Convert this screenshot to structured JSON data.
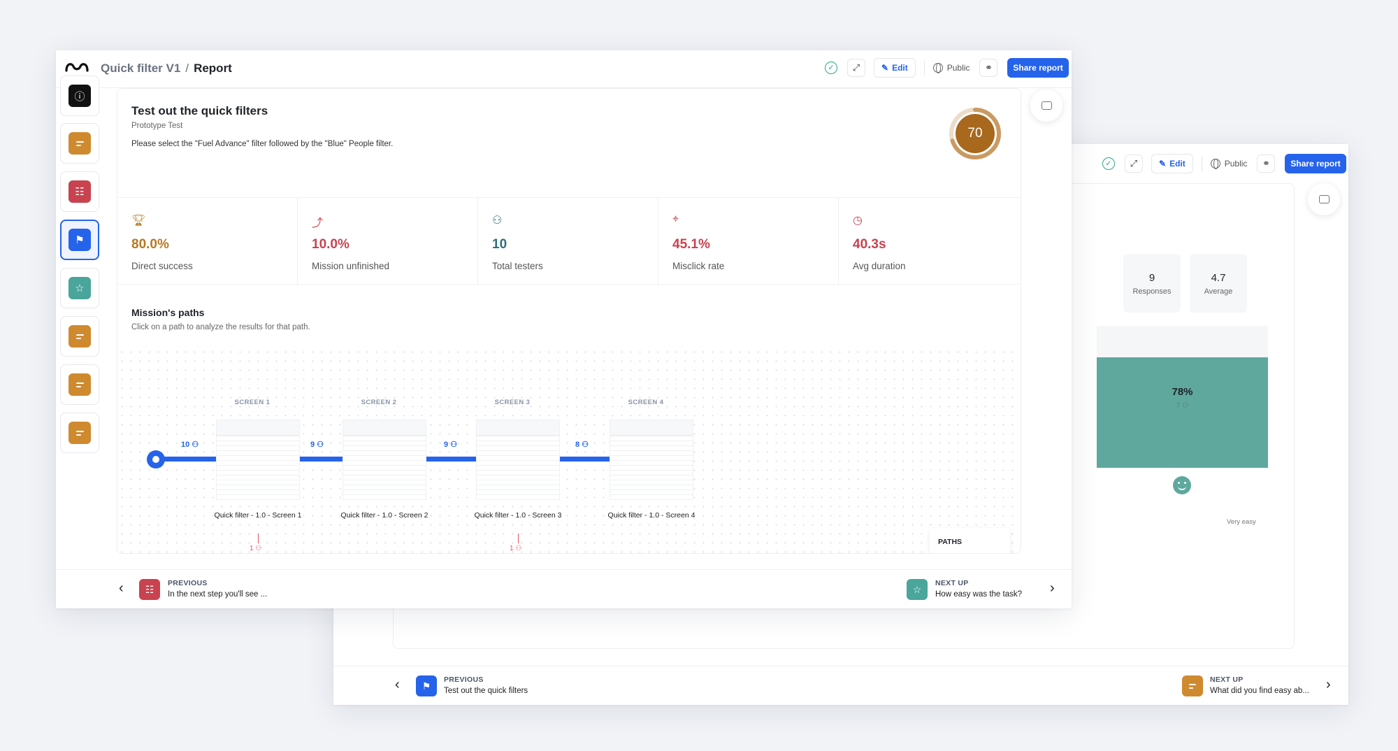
{
  "header": {
    "project": "Quick filter V1",
    "separator": "/",
    "page": "Report",
    "edit_label": "Edit",
    "visibility_label": "Public",
    "share_label": "Share report"
  },
  "sidebar": {
    "items": [
      {
        "icon": "info-icon",
        "color": "#111111"
      },
      {
        "icon": "text-icon",
        "color": "#cf8a2f"
      },
      {
        "icon": "context-icon",
        "color": "#c9424f"
      },
      {
        "icon": "flag-icon",
        "color": "#2563eb",
        "active": true
      },
      {
        "icon": "star-icon",
        "color": "#4aa59b"
      },
      {
        "icon": "text-icon",
        "color": "#cf8a2f"
      },
      {
        "icon": "text-icon",
        "color": "#cf8a2f"
      },
      {
        "icon": "text-icon",
        "color": "#cf8a2f"
      }
    ]
  },
  "mission": {
    "title": "Test out the quick filters",
    "type": "Prototype Test",
    "instructions": "Please select the \"Fuel Advance\" filter followed by the \"Blue\" People filter.",
    "score": "70",
    "score_value": 0.7,
    "score_color": "#a8681e"
  },
  "stats": [
    {
      "icon": "trophy-icon",
      "value": "80.0%",
      "label": "Direct success",
      "color": "#b7791f"
    },
    {
      "icon": "unfinished-icon",
      "value": "10.0%",
      "label": "Mission unfinished",
      "color": "#c9424f"
    },
    {
      "icon": "users-icon",
      "value": "10",
      "label": "Total testers",
      "color": "#2f6f7a"
    },
    {
      "icon": "misclick-icon",
      "value": "45.1%",
      "label": "Misclick rate",
      "color": "#c9424f"
    },
    {
      "icon": "clock-icon",
      "value": "40.3s",
      "label": "Avg duration",
      "color": "#c9424f"
    }
  ],
  "paths": {
    "title": "Mission's paths",
    "subtitle": "Click on a path to analyze the results for that path.",
    "legend_label": "PATHS",
    "screens": [
      {
        "head": "SCREEN 1",
        "label": "Quick filter - 1.0 - Screen 1"
      },
      {
        "head": "SCREEN 2",
        "label": "Quick filter - 1.0 - Screen 2"
      },
      {
        "head": "SCREEN 3",
        "label": "Quick filter - 1.0 - Screen 3"
      },
      {
        "head": "SCREEN 4",
        "label": "Quick filter - 1.0 - Screen 4"
      }
    ],
    "link_counts": [
      "10",
      "9",
      "9",
      "8"
    ],
    "drop_counts": [
      "1",
      "1"
    ]
  },
  "nav_front": {
    "prev_label": "PREVIOUS",
    "prev_text": "In the next step you'll see ...",
    "next_label": "NEXT UP",
    "next_text": "How easy was the task?"
  },
  "back_window": {
    "edit_label": "Edit",
    "visibility_label": "Public",
    "share_label": "Share report",
    "responses_value": "9",
    "responses_label": "Responses",
    "average_value": "4.7",
    "average_label": "Average",
    "bar_pct": "78%",
    "bar_value": 0.78,
    "bar_count": "7",
    "very_easy_label": "Very easy",
    "prev_label": "PREVIOUS",
    "prev_text": "Test out the quick filters",
    "next_label": "NEXT UP",
    "next_text": "What did you find easy ab..."
  }
}
